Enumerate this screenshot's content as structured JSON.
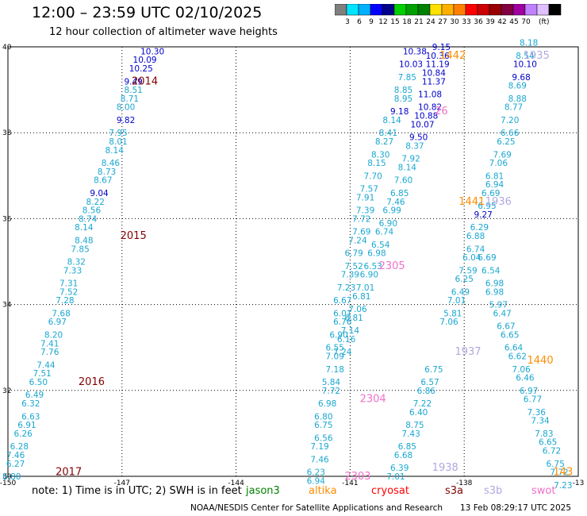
{
  "title": "12:00 – 23:59 UTC 02/10/2025",
  "subtitle": "12 hour collection of altimeter wave heights",
  "colorbar": {
    "colors": [
      "#7f7f7f",
      "#00e5ff",
      "#00b0ff",
      "#0000ff",
      "#00008b",
      "#00d000",
      "#00a000",
      "#008000",
      "#ffe000",
      "#ffb000",
      "#ff8000",
      "#ff0000",
      "#cc0000",
      "#990000",
      "#800040",
      "#a000a0",
      "#c080ff",
      "#e0c0ff",
      "#000000"
    ],
    "ticks": [
      "3",
      "6",
      "9",
      "12",
      "15",
      "18",
      "21",
      "24",
      "27",
      "30",
      "33",
      "36",
      "39",
      "42",
      "45",
      "70"
    ],
    "unit": "(ft)"
  },
  "map": {
    "x_ticks": [
      "-150",
      "-147",
      "-144",
      "-141",
      "-138",
      "-13"
    ],
    "y_ticks": [
      "40",
      "38",
      "36",
      "34",
      "32",
      "30"
    ],
    "lon_range": [
      -150,
      -135
    ],
    "lat_range": [
      30,
      40
    ]
  },
  "chart_data": {
    "type": "scatter",
    "xlabel": "",
    "ylabel": "",
    "xlim": [
      -150,
      -135
    ],
    "ylim": [
      30,
      40
    ],
    "time_labels": [
      {
        "text": "2014",
        "lon": -146.4,
        "lat": 39.2,
        "color": "#800000"
      },
      {
        "text": "2015",
        "lon": -146.7,
        "lat": 35.6,
        "color": "#800000"
      },
      {
        "text": "2016",
        "lon": -147.8,
        "lat": 32.2,
        "color": "#800000"
      },
      {
        "text": "2017",
        "lon": -148.4,
        "lat": 30.1,
        "color": "#800000"
      },
      {
        "text": "1442",
        "lon": -138.3,
        "lat": 39.8,
        "color": "#ff8c00"
      },
      {
        "text": "1441",
        "lon": -137.8,
        "lat": 36.4,
        "color": "#ff8c00"
      },
      {
        "text": "1440",
        "lon": -136.0,
        "lat": 32.7,
        "color": "#ff8c00"
      },
      {
        "text": "143",
        "lon": -135.4,
        "lat": 30.1,
        "color": "#ff8c00"
      },
      {
        "text": "1935",
        "lon": -136.1,
        "lat": 39.8,
        "color": "#b0a8e0"
      },
      {
        "text": "1936",
        "lon": -137.1,
        "lat": 36.4,
        "color": "#b0a8e0"
      },
      {
        "text": "1937",
        "lon": -137.9,
        "lat": 32.9,
        "color": "#b0a8e0"
      },
      {
        "text": "1938",
        "lon": -138.5,
        "lat": 30.2,
        "color": "#b0a8e0"
      },
      {
        "text": "2305",
        "lon": -139.9,
        "lat": 34.9,
        "color": "#f070c8"
      },
      {
        "text": "2304",
        "lon": -140.4,
        "lat": 31.8,
        "color": "#f070c8"
      },
      {
        "text": "2303",
        "lon": -140.8,
        "lat": 30.0,
        "color": "#f070c8"
      },
      {
        "text": "26",
        "lon": -138.6,
        "lat": 38.5,
        "color": "#f070c8"
      }
    ],
    "series": [
      {
        "name": "track-1",
        "points": [
          [
            -146.2,
            39.9,
            "10.30"
          ],
          [
            -146.4,
            39.7,
            "10.09"
          ],
          [
            -146.5,
            39.5,
            "10.25"
          ],
          [
            -146.7,
            39.2,
            "9.49"
          ],
          [
            -146.7,
            39.0,
            "8.51"
          ],
          [
            -146.8,
            38.8,
            "8.71"
          ],
          [
            -146.9,
            38.6,
            "8.00"
          ],
          [
            -146.9,
            38.3,
            "9.82"
          ],
          [
            -147.1,
            38.0,
            "7.95"
          ],
          [
            -147.1,
            37.8,
            "8.01"
          ],
          [
            -147.2,
            37.6,
            "8.14"
          ],
          [
            -147.3,
            37.3,
            "8.46"
          ],
          [
            -147.4,
            37.1,
            "8.73"
          ],
          [
            -147.5,
            36.9,
            "8.67"
          ],
          [
            -147.6,
            36.6,
            "9.04"
          ],
          [
            -147.7,
            36.4,
            "8.22"
          ],
          [
            -147.8,
            36.2,
            "8.56"
          ],
          [
            -147.9,
            36.0,
            "8.74"
          ],
          [
            -148.0,
            35.8,
            "8.14"
          ],
          [
            -148.0,
            35.5,
            "8.48"
          ],
          [
            -148.1,
            35.3,
            "7.85"
          ],
          [
            -148.2,
            35.0,
            "8.32"
          ],
          [
            -148.3,
            34.8,
            "7.33"
          ],
          [
            -148.4,
            34.5,
            "7.31"
          ],
          [
            -148.4,
            34.3,
            "7.52"
          ],
          [
            -148.5,
            34.1,
            "7.28"
          ],
          [
            -148.6,
            33.8,
            "7.68"
          ],
          [
            -148.7,
            33.6,
            "6.97"
          ],
          [
            -148.8,
            33.3,
            "8.20"
          ],
          [
            -148.9,
            33.1,
            "7.41"
          ],
          [
            -148.9,
            32.9,
            "7.76"
          ],
          [
            -149.0,
            32.6,
            "7.44"
          ],
          [
            -149.1,
            32.4,
            "7.51"
          ],
          [
            -149.2,
            32.2,
            "6.50"
          ],
          [
            -149.3,
            31.9,
            "6.49"
          ],
          [
            -149.4,
            31.7,
            "6.32"
          ],
          [
            -149.4,
            31.4,
            "6.63"
          ],
          [
            -149.5,
            31.2,
            "6.91"
          ],
          [
            -149.6,
            31.0,
            "6.26"
          ],
          [
            -149.7,
            30.7,
            "6.28"
          ],
          [
            -149.8,
            30.5,
            "7.46"
          ],
          [
            -149.8,
            30.3,
            "6.27"
          ],
          [
            -149.9,
            30.0,
            "6.80"
          ]
        ]
      },
      {
        "name": "track-2",
        "points": [
          [
            -138.6,
            40.0,
            "9.15"
          ],
          [
            -138.7,
            39.8,
            "10.36"
          ],
          [
            -138.7,
            39.6,
            "11.19"
          ],
          [
            -138.8,
            39.4,
            "10.84"
          ],
          [
            -138.8,
            39.2,
            "11.37"
          ],
          [
            -138.9,
            38.9,
            "11.08"
          ],
          [
            -138.9,
            38.6,
            "10.82"
          ],
          [
            -139.0,
            38.4,
            "10.88"
          ],
          [
            -139.1,
            38.2,
            "10.07"
          ],
          [
            -139.2,
            37.9,
            "9.50"
          ],
          [
            -139.3,
            37.7,
            "8.37"
          ],
          [
            -139.4,
            37.4,
            "7.92"
          ],
          [
            -139.5,
            37.2,
            "8.14"
          ],
          [
            -139.6,
            36.9,
            "7.60"
          ],
          [
            -139.7,
            36.6,
            "6.85"
          ],
          [
            -139.8,
            36.4,
            "7.46"
          ],
          [
            -139.9,
            36.2,
            "6.99"
          ],
          [
            -140.0,
            35.9,
            "6.90"
          ],
          [
            -140.1,
            35.7,
            "6.74"
          ],
          [
            -140.2,
            35.4,
            "6.54"
          ],
          [
            -140.3,
            35.2,
            "6.98"
          ],
          [
            -140.4,
            34.9,
            "6.53"
          ],
          [
            -140.5,
            34.7,
            "6.90"
          ],
          [
            -140.6,
            34.4,
            "7.01"
          ],
          [
            -140.7,
            34.2,
            "6.81"
          ],
          [
            -140.8,
            33.9,
            "7.06"
          ],
          [
            -140.9,
            33.7,
            "6.81"
          ],
          [
            -141.0,
            33.4,
            "7.14"
          ],
          [
            -141.1,
            33.2,
            "6.16"
          ],
          [
            -141.2,
            32.9,
            "7.24"
          ]
        ]
      },
      {
        "name": "track-3",
        "points": [
          [
            -139.3,
            39.9,
            "10.38"
          ],
          [
            -139.4,
            39.6,
            "10.03"
          ],
          [
            -139.5,
            39.3,
            "7.85"
          ],
          [
            -139.6,
            39.0,
            "8.85"
          ],
          [
            -139.6,
            38.8,
            "8.95"
          ],
          [
            -139.7,
            38.5,
            "9.18"
          ],
          [
            -139.9,
            38.3,
            "8.14"
          ],
          [
            -140.0,
            38.0,
            "8.41"
          ],
          [
            -140.1,
            37.8,
            "8.27"
          ],
          [
            -140.2,
            37.5,
            "8.30"
          ],
          [
            -140.3,
            37.3,
            "8.15"
          ],
          [
            -140.4,
            37.0,
            "7.70"
          ],
          [
            -140.5,
            36.7,
            "7.57"
          ],
          [
            -140.6,
            36.5,
            "7.91"
          ],
          [
            -140.6,
            36.2,
            "7.39"
          ],
          [
            -140.7,
            36.0,
            "7.72"
          ],
          [
            -140.7,
            35.7,
            "7.69"
          ],
          [
            -140.8,
            35.5,
            "7.24"
          ],
          [
            -140.9,
            35.2,
            "6.79"
          ],
          [
            -140.9,
            34.9,
            "7.52"
          ],
          [
            -141.0,
            34.7,
            "7.39"
          ],
          [
            -141.1,
            34.4,
            "7.23"
          ],
          [
            -141.2,
            34.1,
            "6.67"
          ],
          [
            -141.2,
            33.8,
            "6.01"
          ],
          [
            -141.2,
            33.6,
            "6.76"
          ],
          [
            -141.3,
            33.3,
            "6.90"
          ],
          [
            -141.4,
            33.0,
            "6.55"
          ],
          [
            -141.4,
            32.8,
            "7.09"
          ],
          [
            -141.4,
            32.5,
            "7.18"
          ],
          [
            -141.5,
            32.2,
            "5.84"
          ],
          [
            -141.5,
            32.0,
            "7.72"
          ],
          [
            -141.6,
            31.7,
            "6.98"
          ],
          [
            -141.7,
            31.4,
            "6.80"
          ],
          [
            -141.7,
            31.2,
            "6.75"
          ],
          [
            -141.7,
            30.9,
            "6.56"
          ],
          [
            -141.8,
            30.7,
            "7.19"
          ],
          [
            -141.8,
            30.4,
            "7.46"
          ],
          [
            -141.9,
            30.1,
            "6.23"
          ],
          [
            -141.9,
            29.9,
            "6.94"
          ]
        ]
      },
      {
        "name": "track-4",
        "points": [
          [
            -136.3,
            40.1,
            "8.18"
          ],
          [
            -136.4,
            39.8,
            "8.54"
          ],
          [
            -136.4,
            39.6,
            "10.10"
          ],
          [
            -136.5,
            39.3,
            "9.68"
          ],
          [
            -136.6,
            39.1,
            "8.69"
          ],
          [
            -136.6,
            38.8,
            "8.88"
          ],
          [
            -136.7,
            38.6,
            "8.77"
          ],
          [
            -136.8,
            38.3,
            "7.20"
          ],
          [
            -136.8,
            38.0,
            "6.66"
          ],
          [
            -136.9,
            37.8,
            "6.25"
          ],
          [
            -137.0,
            37.5,
            "7.69"
          ],
          [
            -137.1,
            37.3,
            "7.06"
          ],
          [
            -137.2,
            37.0,
            "6.81"
          ],
          [
            -137.2,
            36.8,
            "6.94"
          ],
          [
            -137.3,
            36.6,
            "6.69"
          ],
          [
            -137.4,
            36.3,
            "6.95"
          ],
          [
            -137.5,
            36.1,
            "9.27"
          ],
          [
            -137.6,
            35.8,
            "6.29"
          ],
          [
            -137.7,
            35.6,
            "6.88"
          ],
          [
            -137.7,
            35.3,
            "6.74"
          ],
          [
            -137.8,
            35.1,
            "6.04"
          ],
          [
            -137.9,
            34.8,
            "7.59"
          ],
          [
            -138.0,
            34.6,
            "6.25"
          ],
          [
            -138.1,
            34.3,
            "6.49"
          ],
          [
            -138.2,
            34.1,
            "7.01"
          ],
          [
            -138.3,
            33.8,
            "5.81"
          ],
          [
            -138.4,
            33.6,
            "7.06"
          ]
        ]
      },
      {
        "name": "track-5",
        "points": [
          [
            -137.4,
            35.1,
            "6.69"
          ],
          [
            -137.3,
            34.8,
            "6.54"
          ],
          [
            -137.2,
            34.5,
            "6.98"
          ],
          [
            -137.2,
            34.3,
            "6.98"
          ],
          [
            -137.1,
            34.0,
            "5.97"
          ],
          [
            -137.0,
            33.8,
            "6.47"
          ],
          [
            -136.9,
            33.5,
            "6.67"
          ],
          [
            -136.8,
            33.3,
            "6.65"
          ],
          [
            -136.7,
            33.0,
            "6.64"
          ],
          [
            -136.6,
            32.8,
            "6.62"
          ],
          [
            -136.5,
            32.5,
            "7.06"
          ],
          [
            -136.4,
            32.3,
            "6.46"
          ],
          [
            -136.3,
            32.0,
            "6.97"
          ],
          [
            -136.2,
            31.8,
            "6.77"
          ],
          [
            -136.1,
            31.5,
            "7.36"
          ],
          [
            -136.0,
            31.3,
            "7.34"
          ],
          [
            -135.9,
            31.0,
            "7.83"
          ],
          [
            -135.8,
            30.8,
            "6.65"
          ],
          [
            -135.7,
            30.6,
            "6.72"
          ],
          [
            -135.6,
            30.3,
            "6.75"
          ],
          [
            -135.5,
            30.1,
            "7.72"
          ],
          [
            -135.4,
            29.8,
            "7.23"
          ]
        ]
      },
      {
        "name": "track-6",
        "points": [
          [
            -138.8,
            32.5,
            "6.75"
          ],
          [
            -138.9,
            32.2,
            "6.57"
          ],
          [
            -139.0,
            32.0,
            "6.86"
          ],
          [
            -139.1,
            31.7,
            "7.22"
          ],
          [
            -139.2,
            31.5,
            "6.40"
          ],
          [
            -139.3,
            31.2,
            "8.75"
          ],
          [
            -139.4,
            31.0,
            "7.43"
          ],
          [
            -139.5,
            30.7,
            "6.85"
          ],
          [
            -139.6,
            30.5,
            "6.68"
          ],
          [
            -139.7,
            30.2,
            "6.39"
          ],
          [
            -139.8,
            30.0,
            "7.01"
          ]
        ]
      }
    ]
  },
  "footer": {
    "note": "note:  1) Time is in UTC; 2) SWH is in feet",
    "legend": [
      {
        "label": "jason3",
        "color": "#008000"
      },
      {
        "label": "altika",
        "color": "#ff8c00"
      },
      {
        "label": "cryosat",
        "color": "#ff0000"
      },
      {
        "label": "s3a",
        "color": "#800000"
      },
      {
        "label": "s3b",
        "color": "#b0a8e0"
      },
      {
        "label": "swot",
        "color": "#f070c8"
      }
    ],
    "credit": "NOAA/NESDIS Center for Satellite Applications and Research",
    "timestamp": "13 Feb 08:29:17 UTC 2025"
  }
}
